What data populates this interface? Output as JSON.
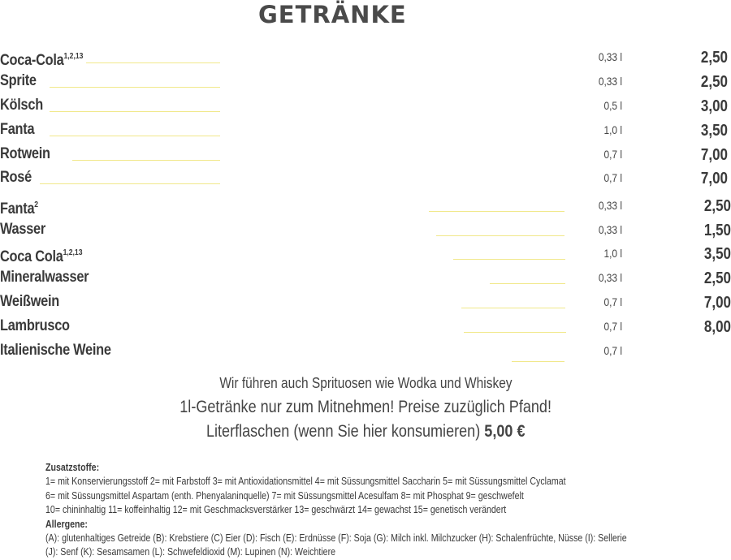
{
  "title": "GETRÄNKE",
  "drinks": [
    {
      "name": "Coca-Cola",
      "sup": "1,2,13",
      "size": "0,33 l",
      "price": "2,50"
    },
    {
      "name": "Sprite",
      "sup": "",
      "size": "0,33 l",
      "price": "2,50"
    },
    {
      "name": "Kölsch",
      "sup": "",
      "size": "0,5 l",
      "price": "3,00"
    },
    {
      "name": "Fanta",
      "sup": "",
      "size": "1,0 l",
      "price": "3,50"
    },
    {
      "name": "Rotwein",
      "sup": "",
      "size": "0,7 l",
      "price": "7,00"
    },
    {
      "name": "Rosé",
      "sup": "",
      "size": "0,7 l",
      "price": "7,00"
    },
    {
      "name": "Fanta",
      "sup": "2",
      "size": "0,33 l",
      "price": "2,50"
    },
    {
      "name": "Wasser",
      "sup": "",
      "size": "0,33 l",
      "price": "1,50"
    },
    {
      "name": "Coca Cola",
      "sup": "1,2,13",
      "size": "1,0 l",
      "price": "3,50"
    },
    {
      "name": "Mineralwasser",
      "sup": "",
      "size": "0,33 l",
      "price": "2,50"
    },
    {
      "name": "Weißwein",
      "sup": "",
      "size": "0,7 l",
      "price": "7,00"
    },
    {
      "name": "Lambrusco",
      "sup": "",
      "size": "0,7 l",
      "price": "8,00"
    },
    {
      "name": "Italienische Weine",
      "sup": "",
      "size": "0,7 l",
      "price": ""
    }
  ],
  "notes": {
    "line1": "Wir führen auch Sprituosen wie Wodka und Whiskey",
    "line2": "1l-Getränke nur zum Mitnehmen! Preise zuzüglich Pfand!",
    "line3": "Literflaschen (wenn Sie hier konsumieren)",
    "line3_price": "5,00 €"
  },
  "legend": {
    "additives_heading": "Zusatzstoffe:",
    "additives": [
      "1= mit Konservierungsstoff 2= mit Farbstoff 3= mit Antioxidationsmittel 4= mit Süssungsmittel Saccharin 5= mit Süssungsmittel Cyclamat",
      "6= mit Süssungsmittel Aspartam (enth. Phenyalaninquelle) 7= mit Süssungsmittel Acesulfam 8= mit Phosphat 9= geschwefelt",
      "10= chininhaltig 11= koffeinhaltig 12= mit Geschmacksverstärker 13= geschwärzt 14= gewachst 15= genetisch verändert"
    ],
    "allergens_heading": "Allergene:",
    "allergens": [
      "(A): glutenhaltiges Getreide (B): Krebstiere (C) Eier (D): Fisch (E): Erdnüsse (F): Soja (G): Milch inkl. Milchzucker (H): Schalenfrüchte, Nüsse (I): Sellerie",
      "(J): Senf (K): Sesamsamen (L): Schwefeldioxid (M): Lupinen (N): Weichtiere"
    ]
  }
}
